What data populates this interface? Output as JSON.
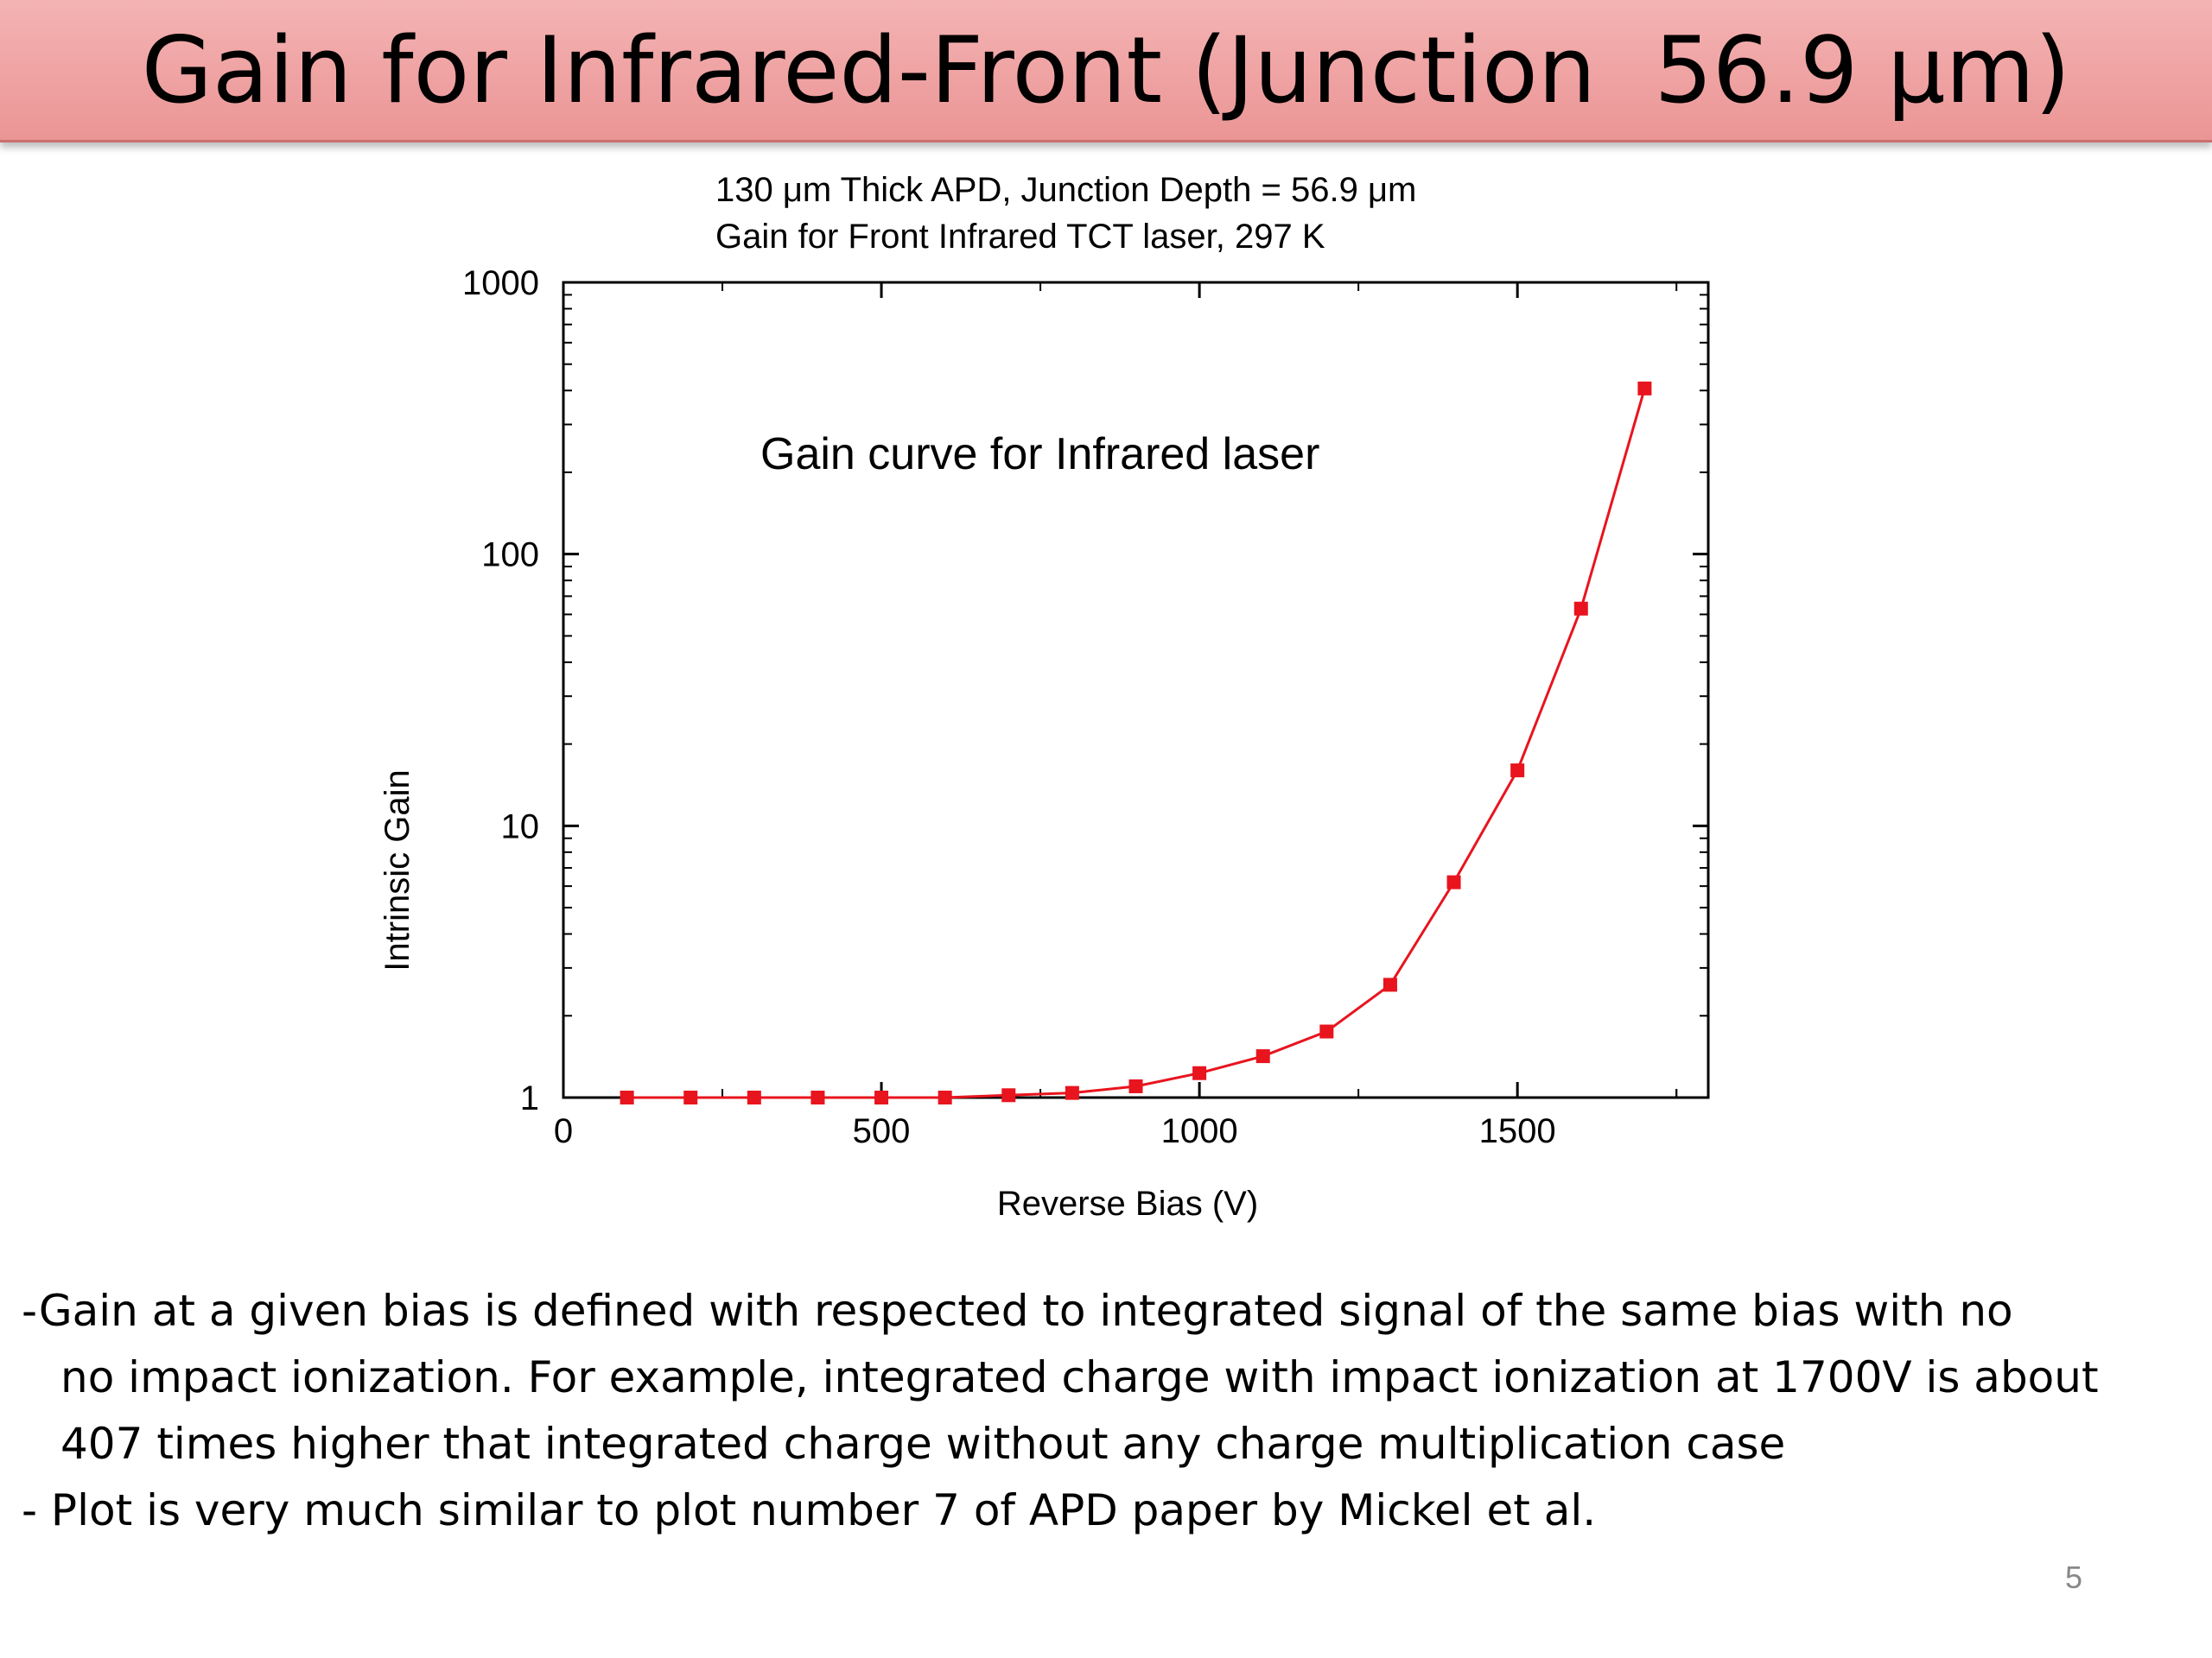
{
  "slide": {
    "title": "Gain for Infrared-Front (Junction  56.9 μm)",
    "notes": [
      "-Gain at a given bias is defined with respected to integrated signal of the same bias with no",
      "no impact ionization. For example, integrated charge with impact ionization at 1700V is about",
      "407 times higher that integrated charge without any charge multiplication case",
      "- Plot is very much similar to plot number 7 of APD paper by Mickel et al."
    ],
    "page_number": "5"
  },
  "chart_data": {
    "type": "line",
    "title": "130 μm Thick APD, Junction Depth = 56.9 μm",
    "subtitle": "Gain for Front Infrared TCT laser, 297 K",
    "xlabel": "Reverse Bias (V)",
    "ylabel": "Intrinsic Gain",
    "annotation": "Gain curve for Infrared laser",
    "xlim": [
      0,
      1800
    ],
    "ylim": [
      1,
      1000
    ],
    "yscale": "log",
    "x_ticks": [
      0,
      500,
      1000,
      1500
    ],
    "x_tick_labels": [
      "0",
      "500",
      "1000",
      "1500"
    ],
    "y_ticks": [
      1,
      10,
      100,
      1000
    ],
    "y_tick_labels": [
      "1",
      "10",
      "100",
      "1000"
    ],
    "grid": false,
    "marker": "square",
    "series_color": "#e8141e",
    "x": [
      100,
      200,
      300,
      400,
      500,
      600,
      700,
      800,
      900,
      1000,
      1100,
      1200,
      1300,
      1400,
      1500,
      1600,
      1700
    ],
    "y": [
      1.0,
      1.0,
      1.0,
      1.0,
      1.0,
      1.0,
      1.02,
      1.04,
      1.1,
      1.23,
      1.42,
      1.75,
      2.6,
      6.2,
      16,
      63,
      407
    ]
  }
}
